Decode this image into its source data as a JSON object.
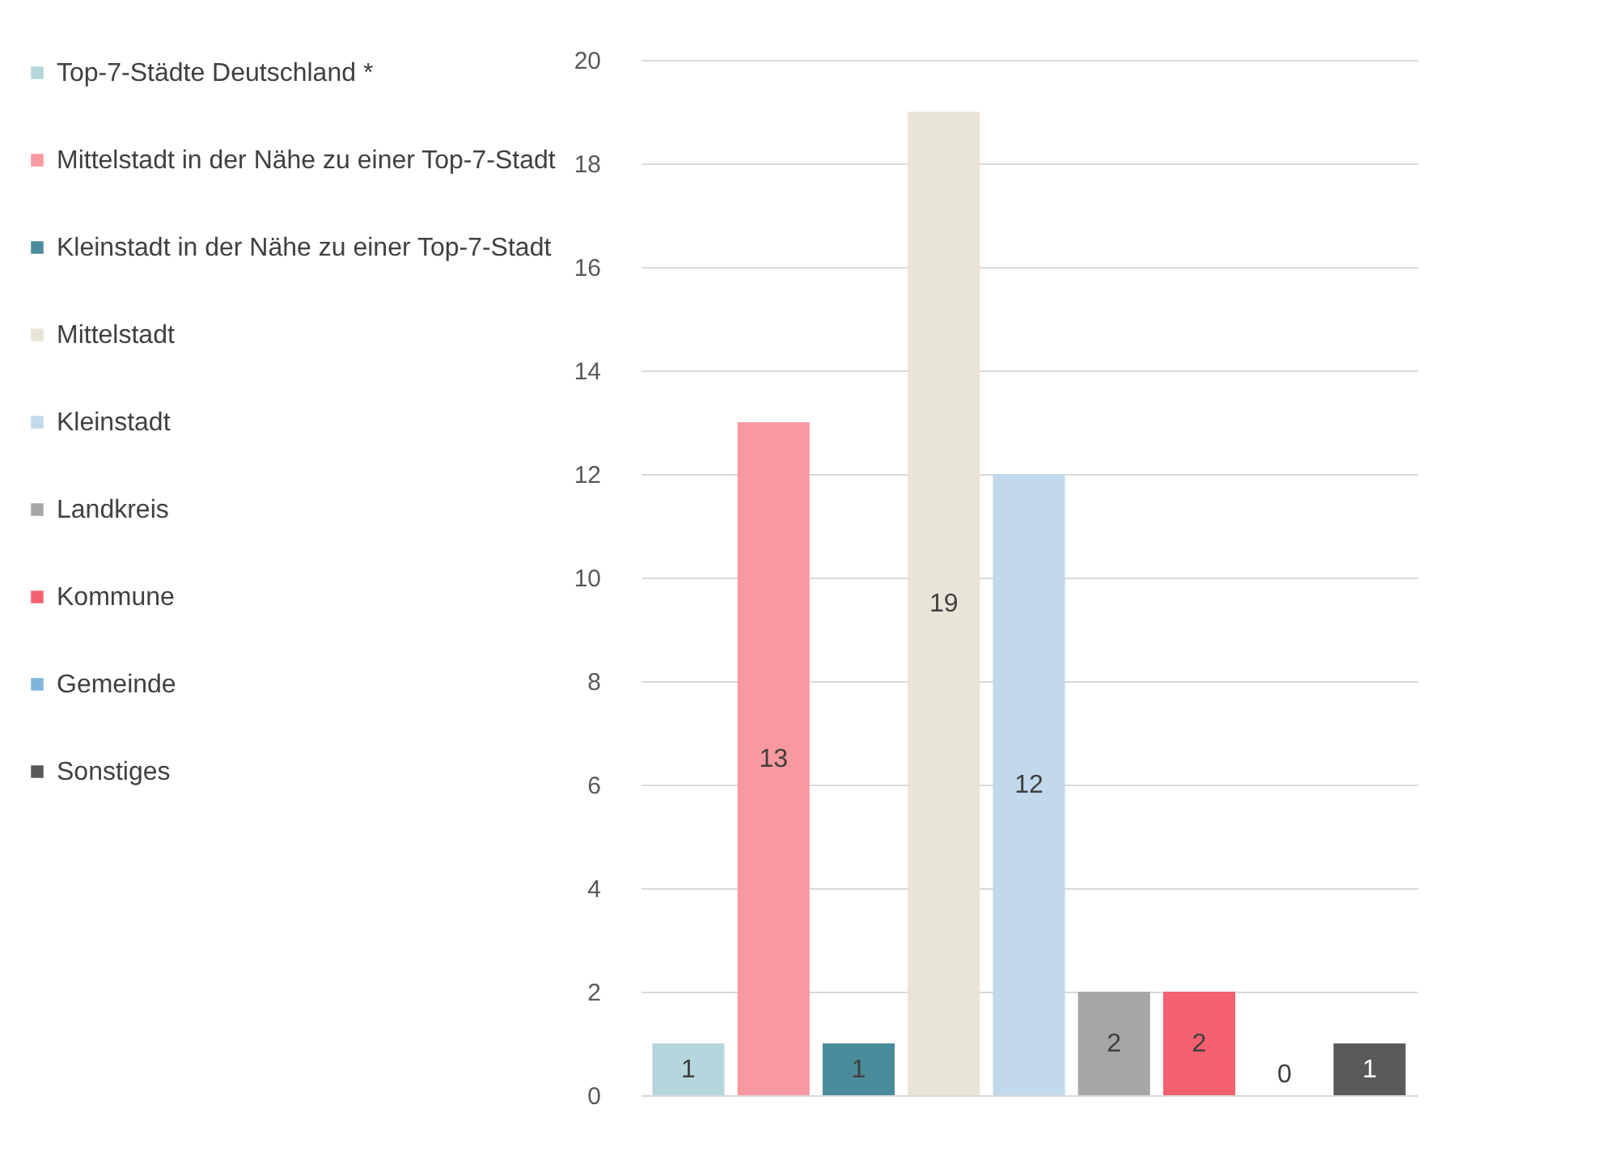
{
  "chart_data": {
    "type": "bar",
    "categories": [
      null,
      null,
      null,
      null,
      null,
      null,
      null,
      null,
      null
    ],
    "series": [
      {
        "name": "Top-7-Städte Deutschland *",
        "color": "#b5d6dd",
        "values": [
          1,
          null,
          null,
          null,
          null,
          null,
          null,
          null,
          null
        ]
      },
      {
        "name": "Mittelstadt in der Nähe zu einer Top-7-Stadt",
        "color": "#f898a1",
        "values": [
          null,
          13,
          null,
          null,
          null,
          null,
          null,
          null,
          null
        ]
      },
      {
        "name": "Kleinstadt in der Nähe zu einer Top-7-Stadt",
        "color": "#4b8c9c",
        "values": [
          null,
          null,
          1,
          null,
          null,
          null,
          null,
          null,
          null
        ]
      },
      {
        "name": "Mittelstadt",
        "color": "#e8e4d6",
        "values": [
          null,
          null,
          null,
          19,
          null,
          null,
          null,
          null,
          null
        ]
      },
      {
        "name": "Kleinstadt",
        "color": "#c2d9ec",
        "values": [
          null,
          null,
          null,
          null,
          12,
          null,
          null,
          null,
          null
        ]
      },
      {
        "name": "Landkreis",
        "color": "#a6a6a6",
        "values": [
          null,
          null,
          null,
          null,
          null,
          2,
          null,
          null,
          null
        ]
      },
      {
        "name": "Kommune",
        "color": "#f5616e",
        "values": [
          null,
          null,
          null,
          null,
          null,
          null,
          2,
          null,
          null
        ]
      },
      {
        "name": "Gemeinde",
        "color": "#80b4d9",
        "values": [
          null,
          null,
          null,
          null,
          null,
          null,
          null,
          0,
          null
        ]
      },
      {
        "name": "Sonstiges",
        "color": "#595959",
        "values": [
          null,
          null,
          null,
          null,
          null,
          null,
          null,
          null,
          1
        ]
      }
    ],
    "ylim": [
      0,
      20
    ],
    "yticks": [
      0,
      2,
      4,
      6,
      8,
      10,
      12,
      14,
      16,
      18,
      20
    ],
    "grid": "y",
    "legend": "left",
    "tick_labels": "y",
    "data_labels": true
  }
}
